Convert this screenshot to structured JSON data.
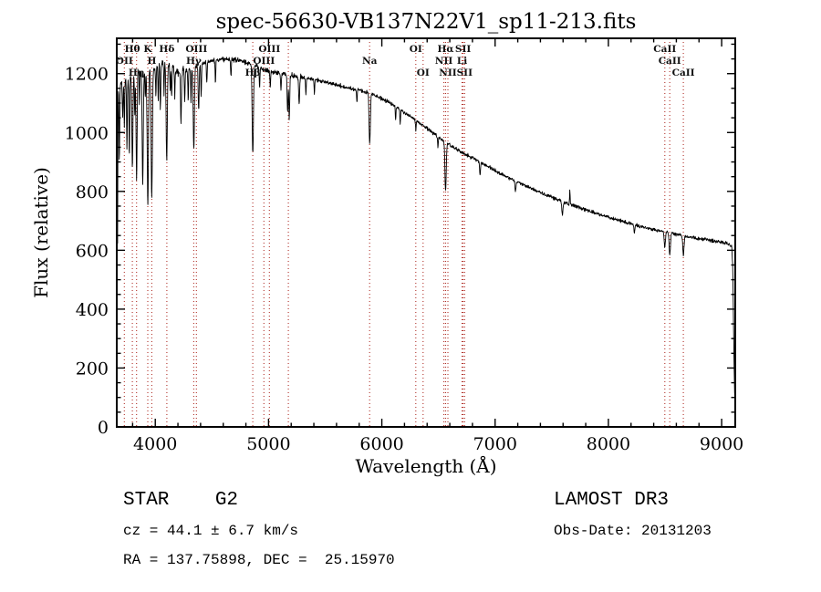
{
  "title": "spec-56630-VB137N22V1_sp11-213.fits",
  "annotations": {
    "class_line": "STAR    G2",
    "cz_line": "cz = 44.1 ± 6.7 km/s",
    "radec_line": "RA = 137.75898, DEC =  25.15970",
    "survey": "LAMOST DR3",
    "obs_date": "Obs-Date: 20131203"
  },
  "colors": {
    "background": "#ffffff",
    "spectrum": "#000000",
    "axis": "#000000",
    "marker_line": "#b03028"
  },
  "chart_data": {
    "type": "line",
    "title": "spec-56630-VB137N22V1_sp11-213.fits",
    "xlabel": "Wavelength (Å)",
    "ylabel": "Flux (relative)",
    "xlim": [
      3660,
      9120
    ],
    "ylim": [
      0,
      1320
    ],
    "xticks": [
      4000,
      5000,
      6000,
      7000,
      8000,
      9000
    ],
    "yticks": [
      0,
      200,
      400,
      600,
      800,
      1000,
      1200
    ],
    "x_minor_step": 200,
    "y_minor_step": 50,
    "grid": false,
    "legend": "none",
    "line_markers": [
      {
        "label": "OII",
        "x": 3727,
        "row": 1
      },
      {
        "label": "Hθ",
        "x": 3798,
        "row": 0
      },
      {
        "label": "Hη",
        "x": 3835,
        "row": 2
      },
      {
        "label": "K",
        "x": 3934,
        "row": 0
      },
      {
        "label": "H",
        "x": 3969,
        "row": 1
      },
      {
        "label": "Hδ",
        "x": 4102,
        "row": 0
      },
      {
        "label": "Hγ",
        "x": 4340,
        "row": 1
      },
      {
        "label": "OIII",
        "x": 4363,
        "row": 0
      },
      {
        "label": "Hβ",
        "x": 4861,
        "row": 2
      },
      {
        "label": "OIII",
        "x": 4959,
        "row": 1
      },
      {
        "label": "OIII",
        "x": 5007,
        "row": 0
      },
      {
        "label": "",
        "x": 5175,
        "row": 0
      },
      {
        "label": "Na",
        "x": 5892,
        "row": 1
      },
      {
        "label": "OI",
        "x": 6300,
        "row": 0
      },
      {
        "label": "OI",
        "x": 6364,
        "row": 2
      },
      {
        "label": "NII",
        "x": 6548,
        "row": 1
      },
      {
        "label": "Hα",
        "x": 6563,
        "row": 0
      },
      {
        "label": "NII",
        "x": 6583,
        "row": 2
      },
      {
        "label": "Li",
        "x": 6708,
        "row": 1
      },
      {
        "label": "SII",
        "x": 6717,
        "row": 0
      },
      {
        "label": "SII",
        "x": 6731,
        "row": 2
      },
      {
        "label": "CaII",
        "x": 8498,
        "row": 0
      },
      {
        "label": "CaII",
        "x": 8542,
        "row": 1
      },
      {
        "label": "CaII",
        "x": 8662,
        "row": 2
      }
    ],
    "continuum": [
      [
        3660,
        1120
      ],
      [
        3700,
        1160
      ],
      [
        3750,
        1185
      ],
      [
        3800,
        1200
      ],
      [
        3850,
        1208
      ],
      [
        3900,
        1212
      ],
      [
        3960,
        1218
      ],
      [
        4020,
        1228
      ],
      [
        4080,
        1240
      ],
      [
        4140,
        1232
      ],
      [
        4200,
        1205
      ],
      [
        4260,
        1210
      ],
      [
        4330,
        1222
      ],
      [
        4400,
        1232
      ],
      [
        4480,
        1242
      ],
      [
        4560,
        1248
      ],
      [
        4640,
        1250
      ],
      [
        4720,
        1246
      ],
      [
        4800,
        1238
      ],
      [
        4880,
        1226
      ],
      [
        4960,
        1214
      ],
      [
        5040,
        1205
      ],
      [
        5120,
        1200
      ],
      [
        5220,
        1192
      ],
      [
        5320,
        1186
      ],
      [
        5420,
        1178
      ],
      [
        5520,
        1170
      ],
      [
        5620,
        1160
      ],
      [
        5720,
        1150
      ],
      [
        5820,
        1142
      ],
      [
        5920,
        1130
      ],
      [
        6020,
        1112
      ],
      [
        6120,
        1090
      ],
      [
        6220,
        1062
      ],
      [
        6320,
        1035
      ],
      [
        6420,
        1008
      ],
      [
        6520,
        978
      ],
      [
        6620,
        952
      ],
      [
        6720,
        930
      ],
      [
        6820,
        910
      ],
      [
        6920,
        888
      ],
      [
        7020,
        866
      ],
      [
        7120,
        846
      ],
      [
        7220,
        828
      ],
      [
        7320,
        810
      ],
      [
        7420,
        793
      ],
      [
        7520,
        777
      ],
      [
        7620,
        762
      ],
      [
        7720,
        748
      ],
      [
        7820,
        735
      ],
      [
        7920,
        722
      ],
      [
        8020,
        710
      ],
      [
        8120,
        699
      ],
      [
        8220,
        688
      ],
      [
        8320,
        678
      ],
      [
        8420,
        669
      ],
      [
        8520,
        661
      ],
      [
        8620,
        653
      ],
      [
        8720,
        645
      ],
      [
        8820,
        638
      ],
      [
        8920,
        632
      ],
      [
        9020,
        626
      ],
      [
        9070,
        620
      ],
      [
        9090,
        612
      ],
      [
        9098,
        540
      ],
      [
        9106,
        300
      ],
      [
        9114,
        120
      ],
      [
        9118,
        95
      ]
    ],
    "absorption_features": [
      [
        3666,
        560,
        2.5
      ],
      [
        3683,
        260,
        2.5
      ],
      [
        3712,
        120,
        3
      ],
      [
        3727,
        160,
        3
      ],
      [
        3750,
        230,
        3.5
      ],
      [
        3771,
        270,
        3.5
      ],
      [
        3798,
        330,
        4.5
      ],
      [
        3819,
        140,
        3
      ],
      [
        3835,
        360,
        4.5
      ],
      [
        3860,
        110,
        3
      ],
      [
        3889,
        390,
        5
      ],
      [
        3912,
        100,
        3
      ],
      [
        3934,
        470,
        5.5
      ],
      [
        3969,
        440,
        5.5
      ],
      [
        4005,
        100,
        3
      ],
      [
        4026,
        130,
        3
      ],
      [
        4045,
        150,
        3
      ],
      [
        4077,
        110,
        3
      ],
      [
        4101,
        330,
        5.5
      ],
      [
        4132,
        90,
        3
      ],
      [
        4144,
        120,
        3
      ],
      [
        4172,
        100,
        3
      ],
      [
        4227,
        180,
        4
      ],
      [
        4260,
        100,
        3
      ],
      [
        4290,
        110,
        3
      ],
      [
        4315,
        120,
        3
      ],
      [
        4340,
        280,
        5.5
      ],
      [
        4383,
        160,
        4
      ],
      [
        4405,
        110,
        3
      ],
      [
        4455,
        70,
        3
      ],
      [
        4531,
        80,
        3
      ],
      [
        4668,
        60,
        3
      ],
      [
        4861,
        300,
        5.5
      ],
      [
        4921,
        70,
        3
      ],
      [
        5015,
        55,
        3
      ],
      [
        5110,
        60,
        3
      ],
      [
        5168,
        130,
        4
      ],
      [
        5183,
        150,
        4
      ],
      [
        5270,
        95,
        4
      ],
      [
        5330,
        60,
        3
      ],
      [
        5405,
        50,
        3
      ],
      [
        5780,
        45,
        3
      ],
      [
        5890,
        130,
        4
      ],
      [
        5897,
        110,
        4
      ],
      [
        6122,
        45,
        3
      ],
      [
        6162,
        50,
        3
      ],
      [
        6300,
        35,
        3
      ],
      [
        6495,
        40,
        3
      ],
      [
        6563,
        165,
        5.5
      ],
      [
        6867,
        45,
        4
      ],
      [
        7180,
        35,
        4
      ],
      [
        7594,
        50,
        5
      ],
      [
        7660,
        -48,
        2.5
      ],
      [
        8230,
        30,
        4
      ],
      [
        8498,
        55,
        5
      ],
      [
        8542,
        78,
        5.5
      ],
      [
        8662,
        68,
        5.5
      ]
    ],
    "noise": {
      "seed": 42,
      "blue_amp": 13,
      "mid_amp": 8,
      "red_amp": 6
    }
  }
}
